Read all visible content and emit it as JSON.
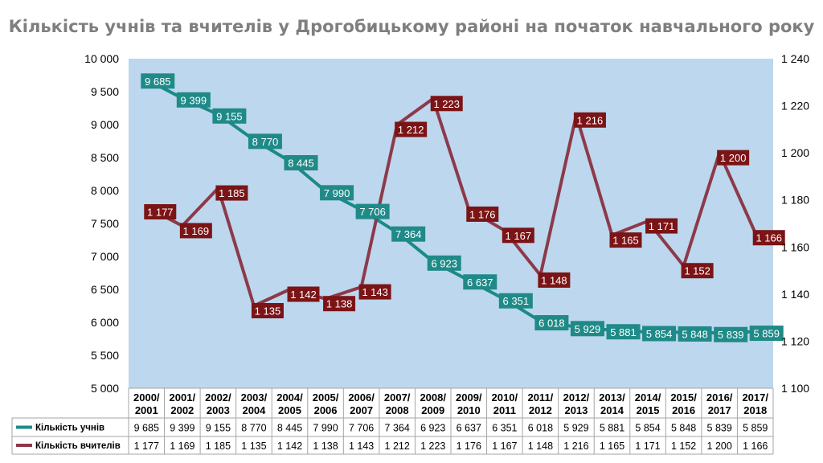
{
  "chart_data": {
    "type": "line",
    "title": "Кількість учнів та вчителів у Дрогобицькому районі на початок навчального року",
    "categories": [
      "2000/ 2001",
      "2001/ 2002",
      "2002/ 2003",
      "2003/ 2004",
      "2004/ 2005",
      "2005/ 2006",
      "2006/ 2007",
      "2007/ 2008",
      "2008/ 2009",
      "2009/ 2010",
      "2010/ 2011",
      "2011/ 2012",
      "2012/ 2013",
      "2013/ 2014",
      "2014/ 2015",
      "2015/ 2016",
      "2016/ 2017",
      "2017/ 2018"
    ],
    "series": [
      {
        "name": "Кількість учнів",
        "axis": "left",
        "color": "#1a8a87",
        "values": [
          9685,
          9399,
          9155,
          8770,
          8445,
          7990,
          7706,
          7364,
          6923,
          6637,
          6351,
          6018,
          5929,
          5881,
          5854,
          5848,
          5839,
          5859
        ],
        "labels": [
          "9 685",
          "9 399",
          "9 155",
          "8 770",
          "8 445",
          "7 990",
          "7 706",
          "7 364",
          "6 923",
          "6 637",
          "6 351",
          "6 018",
          "5 929",
          "5 881",
          "5 854",
          "5 848",
          "5 839",
          "5 859"
        ]
      },
      {
        "name": "Кількість вчителів",
        "axis": "right",
        "color": "#8c3a4a",
        "values": [
          1177,
          1169,
          1185,
          1135,
          1142,
          1138,
          1143,
          1212,
          1223,
          1176,
          1167,
          1148,
          1216,
          1165,
          1171,
          1152,
          1200,
          1166
        ],
        "labels": [
          "1 177",
          "1 169",
          "1 185",
          "1 135",
          "1 142",
          "1 138",
          "1 143",
          "1 212",
          "1 223",
          "1 176",
          "1 167",
          "1 148",
          "1 216",
          "1 165",
          "1 171",
          "1 152",
          "1 200",
          "1 166"
        ]
      }
    ],
    "y_left": {
      "min": 5000,
      "max": 10000,
      "ticks": [
        5000,
        5500,
        6000,
        6500,
        7000,
        7500,
        8000,
        8500,
        9000,
        9500,
        10000
      ],
      "tick_labels": [
        "5 000",
        "5 500",
        "6 000",
        "6 500",
        "7 000",
        "7 500",
        "8 000",
        "8 500",
        "9 000",
        "9 500",
        "10 000"
      ]
    },
    "y_right": {
      "min": 1100,
      "max": 1240,
      "ticks": [
        1100,
        1120,
        1140,
        1160,
        1180,
        1200,
        1220,
        1240
      ],
      "tick_labels": [
        "1 100",
        "1 120",
        "1 140",
        "1 160",
        "1 180",
        "1 200",
        "1 220",
        "1 240"
      ]
    },
    "plot_background": "#bdd7ee",
    "label_colors": {
      "students": "#1f8a87",
      "teachers": "#7b1416"
    },
    "legend": "data-table"
  }
}
